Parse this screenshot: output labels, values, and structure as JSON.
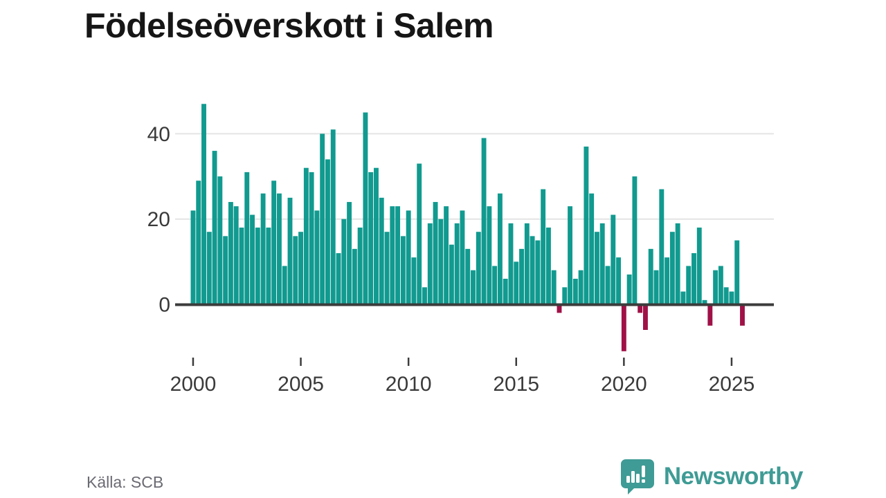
{
  "header": {
    "title": "Födelseöverskott i Salem"
  },
  "footer": {
    "source": "Källa: SCB",
    "brand": "Newsworthy"
  },
  "colors": {
    "bar_positive": "#119a8f",
    "bar_negative": "#a01147",
    "gridline": "#e4e4e4",
    "axis": "#3c3c3c",
    "tick_text": "#3a3a3a",
    "title_text": "#161616",
    "source_text": "#6a6a72",
    "brand_teal": "#3f9b95"
  },
  "chart_data": {
    "type": "bar",
    "title": "Födelseöverskott i Salem",
    "frequency": "quarterly",
    "start_period": "2000-Q1",
    "end_period": "2025-Q3",
    "values": [
      22,
      29,
      47,
      17,
      36,
      30,
      16,
      24,
      23,
      18,
      31,
      21,
      18,
      26,
      18,
      29,
      26,
      9,
      25,
      16,
      17,
      32,
      31,
      22,
      40,
      34,
      41,
      12,
      20,
      24,
      13,
      18,
      45,
      31,
      32,
      25,
      17,
      23,
      23,
      16,
      22,
      11,
      33,
      4,
      19,
      24,
      20,
      23,
      14,
      19,
      22,
      13,
      8,
      17,
      39,
      23,
      9,
      26,
      6,
      19,
      10,
      13,
      19,
      16,
      15,
      27,
      18,
      8,
      -2,
      4,
      23,
      6,
      8,
      37,
      26,
      17,
      19,
      9,
      21,
      11,
      -11,
      7,
      30,
      -2,
      -6,
      13,
      8,
      27,
      11,
      17,
      19,
      3,
      9,
      12,
      18,
      1,
      -5,
      8,
      9,
      4,
      3,
      15,
      -5
    ],
    "y_ticks": [
      {
        "v": 0,
        "label": "0"
      },
      {
        "v": 20,
        "label": "20"
      },
      {
        "v": 40,
        "label": "40"
      }
    ],
    "x_ticks": [
      {
        "label": "2000",
        "q": 0
      },
      {
        "label": "2005",
        "q": 20
      },
      {
        "label": "2010",
        "q": 40
      },
      {
        "label": "2015",
        "q": 60
      },
      {
        "label": "2020",
        "q": 80
      },
      {
        "label": "2025",
        "q": 100
      }
    ],
    "ylim": [
      -13,
      48
    ],
    "grid": true,
    "legend": "none",
    "source": "Källa: SCB"
  }
}
